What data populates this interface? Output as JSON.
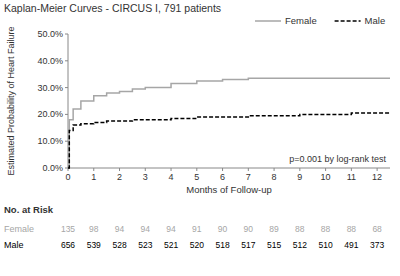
{
  "chart_data": {
    "type": "step",
    "title": "Kaplan-Meier Curves - CIRCUS I, 791 patients",
    "x_label": "Months of Follow-up",
    "y_label": "Estimated Probability of Heart Failure",
    "x": [
      0,
      0.05,
      0.2,
      0.5,
      1,
      1.5,
      2,
      2.5,
      3,
      4,
      5,
      6,
      7,
      8,
      9,
      10,
      11,
      12,
      12.5
    ],
    "series": [
      {
        "name": "Female",
        "color": "#a6a6a6",
        "line_style": "solid",
        "values": [
          0,
          18,
          22,
          25,
          27,
          28,
          28.5,
          29.5,
          30,
          31.5,
          32.5,
          33,
          33.5,
          33.5,
          33.5,
          33.5,
          33.5,
          33.5,
          33.5
        ]
      },
      {
        "name": "Male",
        "color": "#000000",
        "line_style": "dashed",
        "values": [
          0,
          14,
          16,
          16.5,
          17,
          17.5,
          17.5,
          18,
          18,
          18.5,
          19,
          19,
          19.5,
          19.5,
          20,
          20,
          20.5,
          20.5,
          20.5
        ]
      }
    ],
    "xlim": [
      0,
      12.5
    ],
    "xticks": [
      0,
      1,
      2,
      3,
      4,
      5,
      6,
      7,
      8,
      9,
      10,
      11,
      12
    ],
    "ylim": [
      0,
      50
    ],
    "yticks": [
      {
        "value": 0,
        "label": "0.0%"
      },
      {
        "value": 10,
        "label": "10.0%"
      },
      {
        "value": 20,
        "label": "20.0%"
      },
      {
        "value": 30,
        "label": "30.0%"
      },
      {
        "value": 40,
        "label": "40.0%"
      },
      {
        "value": 50,
        "label": "50.0%"
      }
    ],
    "grid": false,
    "legend": "top-right",
    "annotations": [
      {
        "text": "p=0.001 by log-rank test"
      }
    ],
    "risk_table": {
      "title": "No. at Risk",
      "rows": [
        {
          "name": "Female",
          "color": "#a6a6a6",
          "values": [
            135,
            98,
            94,
            94,
            94,
            91,
            90,
            90,
            89,
            88,
            88,
            88,
            68
          ]
        },
        {
          "name": "Male",
          "color": "#000000",
          "values": [
            656,
            539,
            528,
            523,
            521,
            520,
            518,
            517,
            515,
            512,
            510,
            491,
            373
          ]
        }
      ]
    }
  }
}
